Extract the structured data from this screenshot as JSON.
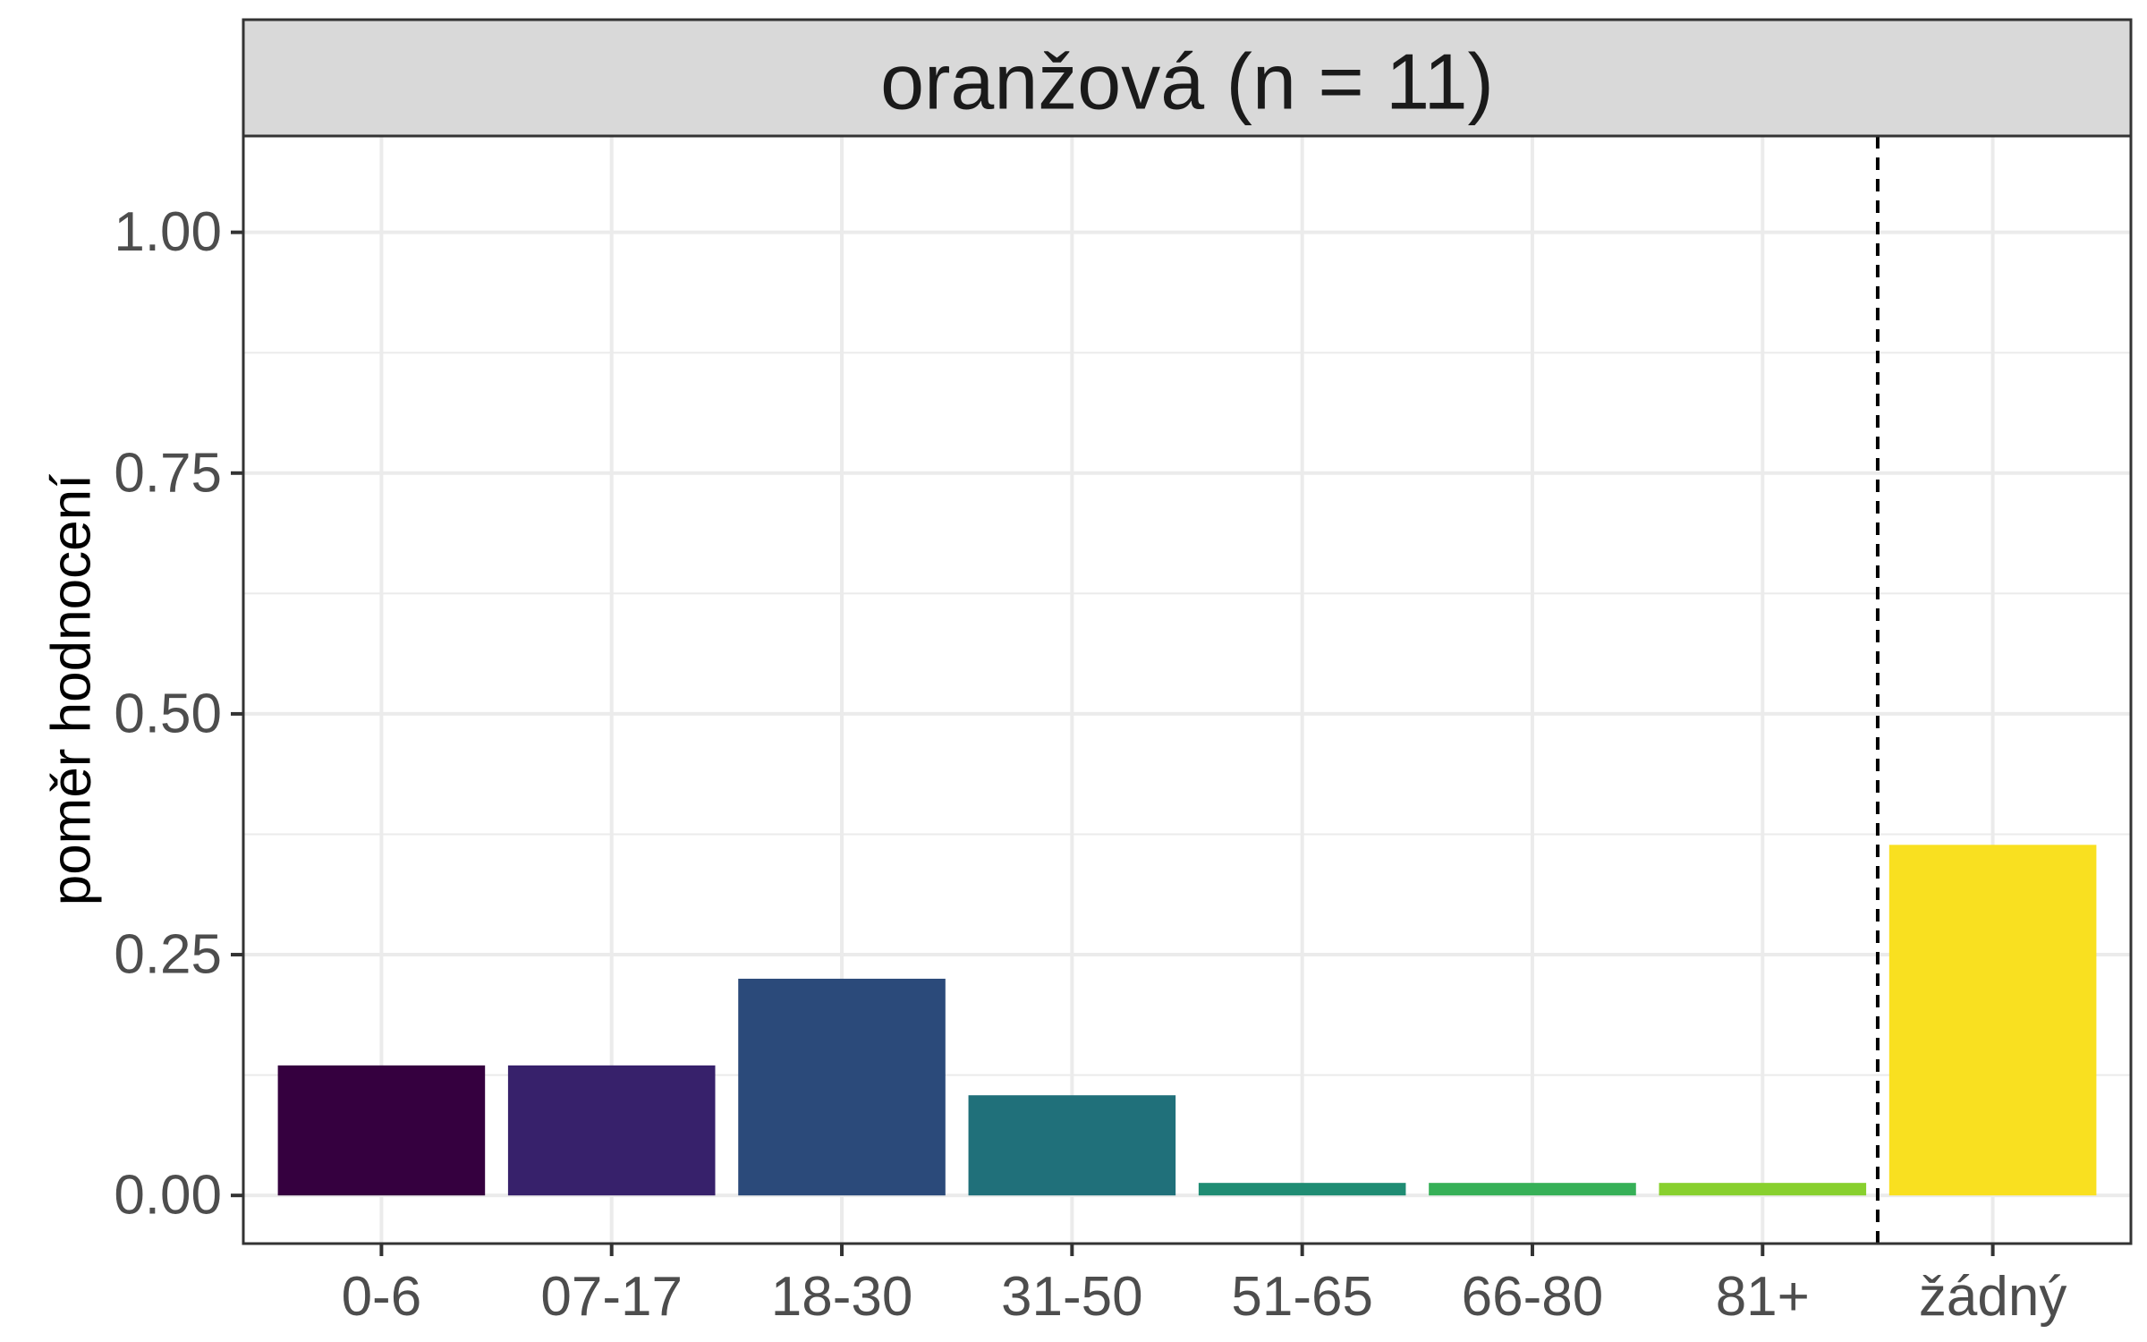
{
  "chart_data": {
    "type": "bar",
    "facet_title": "oranžová (n = 11)",
    "xlabel": "",
    "ylabel": "poměr hodnocení",
    "categories": [
      "0-6",
      "07-17",
      "18-30",
      "31-50",
      "51-65",
      "66-80",
      "81+",
      "žádný"
    ],
    "values": [
      0.135,
      0.135,
      0.225,
      0.104,
      0.013,
      0.013,
      0.013,
      0.364
    ],
    "colors": [
      "#35003f",
      "#37216b",
      "#2b4a7a",
      "#20707a",
      "#1f8c73",
      "#36b057",
      "#88d02e",
      "#f9e020"
    ],
    "ylim": [
      -0.05,
      1.1
    ],
    "y_ticks": [
      0.0,
      0.25,
      0.5,
      0.75,
      1.0
    ],
    "y_tick_labels": [
      "0.00",
      "0.25",
      "0.50",
      "0.75",
      "1.00"
    ],
    "reference_line": {
      "after_category": "81+",
      "style": "dashed"
    },
    "grid": true
  }
}
